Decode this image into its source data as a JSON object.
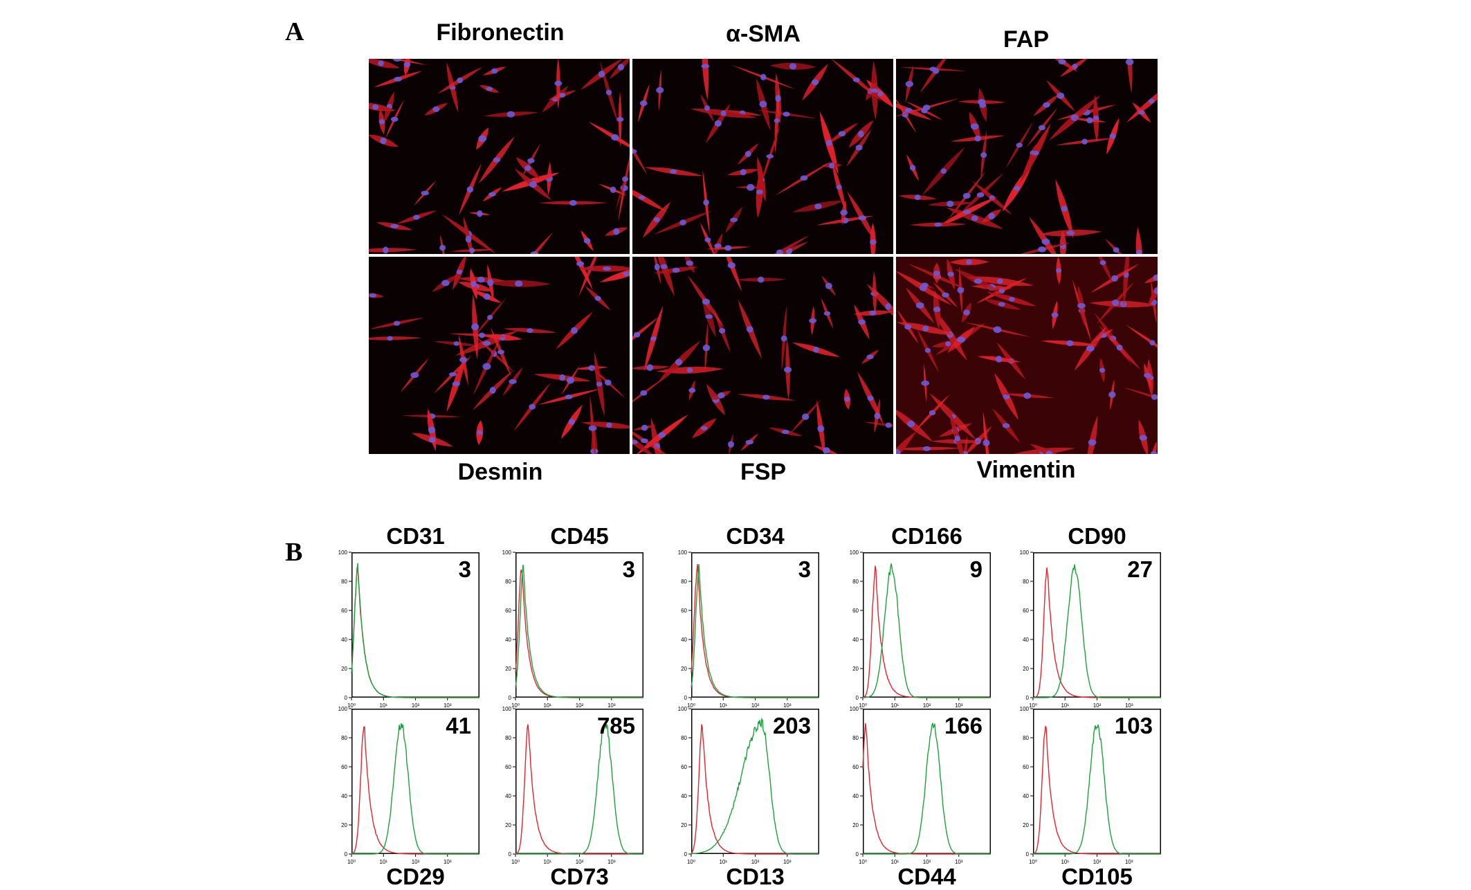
{
  "panel_a": {
    "letter": "A",
    "micrographs": [
      {
        "label": "Fibronectin"
      },
      {
        "label": "α-SMA"
      },
      {
        "label": "FAP"
      },
      {
        "label": "Desmin"
      },
      {
        "label": "FSP"
      },
      {
        "label": "Vimentin"
      }
    ]
  },
  "panel_b": {
    "letter": "B",
    "histograms": [
      {
        "label": "CD31",
        "value": "3"
      },
      {
        "label": "CD45",
        "value": "3"
      },
      {
        "label": "CD34",
        "value": "3"
      },
      {
        "label": "CD166",
        "value": "9"
      },
      {
        "label": "CD90",
        "value": "27"
      },
      {
        "label": "CD29",
        "value": "41"
      },
      {
        "label": "CD73",
        "value": "785"
      },
      {
        "label": "CD13",
        "value": "203"
      },
      {
        "label": "CD44",
        "value": "166"
      },
      {
        "label": "CD105",
        "value": "103"
      }
    ],
    "y_ticks": [
      "0",
      "20",
      "40",
      "60",
      "80",
      "100"
    ],
    "x_ticks": [
      "10⁰",
      "10¹",
      "10²",
      "10³"
    ]
  },
  "chart_data": {
    "type": "histogram-overlay",
    "x_scale": "log",
    "ylim": [
      0,
      100
    ],
    "series_colors": {
      "control": "#e8212b",
      "marker": "#19a33a"
    },
    "panels": [
      {
        "marker": "CD31",
        "value": 3,
        "control_peak_log": 0.2,
        "marker_peak_log": 0.2
      },
      {
        "marker": "CD45",
        "value": 3,
        "control_peak_log": 0.2,
        "marker_peak_log": 0.25
      },
      {
        "marker": "CD34",
        "value": 3,
        "control_peak_log": 0.2,
        "marker_peak_log": 0.25
      },
      {
        "marker": "CD166",
        "value": 9,
        "control_peak_log": 0.4,
        "marker_peak_log": 0.9
      },
      {
        "marker": "CD90",
        "value": 27,
        "control_peak_log": 0.45,
        "marker_peak_log": 1.3
      },
      {
        "marker": "CD29",
        "value": 41,
        "control_peak_log": 0.4,
        "marker_peak_log": 1.55
      },
      {
        "marker": "CD73",
        "value": 785,
        "control_peak_log": 0.4,
        "marker_peak_log": 2.8
      },
      {
        "marker": "CD13",
        "value": 203,
        "control_peak_log": 0.35,
        "marker_peak_log": 2.2
      },
      {
        "marker": "CD44",
        "value": 166,
        "control_peak_log": 0.1,
        "marker_peak_log": 2.2
      },
      {
        "marker": "CD105",
        "value": 103,
        "control_peak_log": 0.4,
        "marker_peak_log": 2.0
      }
    ]
  }
}
